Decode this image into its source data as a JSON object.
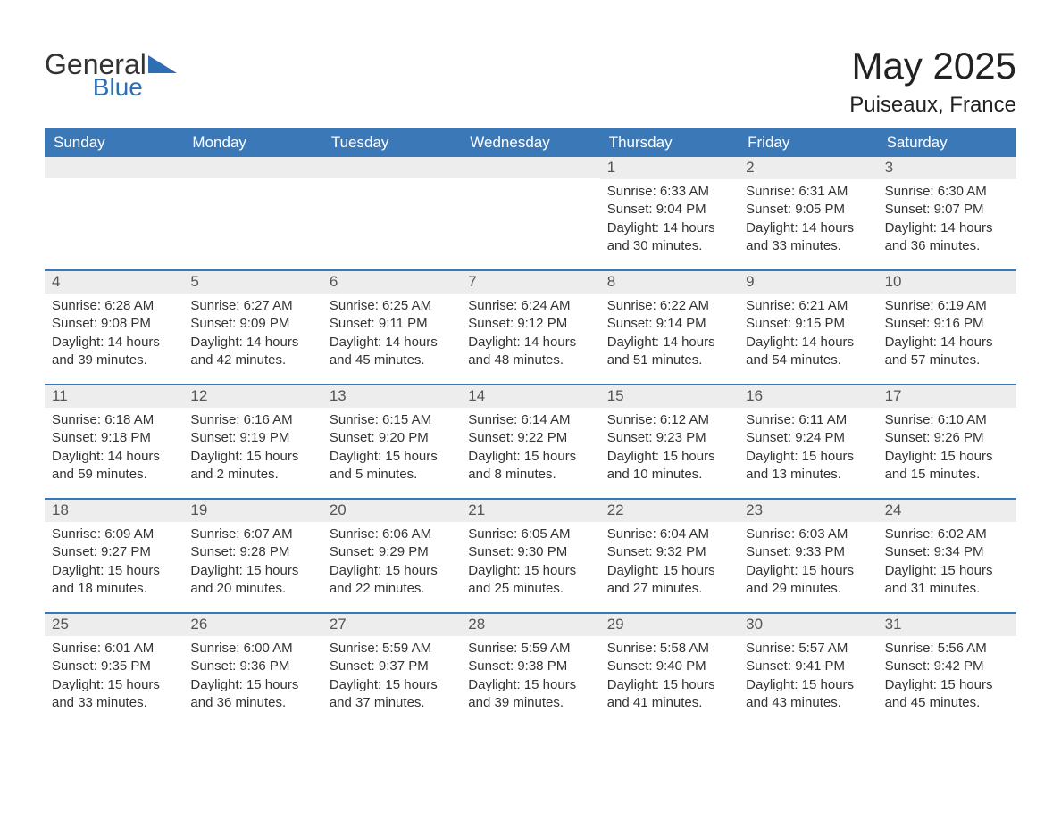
{
  "logo": {
    "general": "General",
    "blue": "Blue"
  },
  "title": "May 2025",
  "location": "Puiseaux, France",
  "colors": {
    "header_bg": "#3b78b8",
    "header_text": "#ffffff",
    "daynum_bg": "#ededed",
    "daynum_text": "#555555",
    "body_text": "#333333",
    "week_border": "#3b78b8",
    "page_bg": "#ffffff",
    "logo_blue": "#2f6eb5"
  },
  "days_of_week": [
    "Sunday",
    "Monday",
    "Tuesday",
    "Wednesday",
    "Thursday",
    "Friday",
    "Saturday"
  ],
  "calendar": {
    "type": "table",
    "columns": 7,
    "leading_blanks": 4,
    "days": [
      {
        "n": 1,
        "sunrise": "6:33 AM",
        "sunset": "9:04 PM",
        "daylight": "14 hours and 30 minutes."
      },
      {
        "n": 2,
        "sunrise": "6:31 AM",
        "sunset": "9:05 PM",
        "daylight": "14 hours and 33 minutes."
      },
      {
        "n": 3,
        "sunrise": "6:30 AM",
        "sunset": "9:07 PM",
        "daylight": "14 hours and 36 minutes."
      },
      {
        "n": 4,
        "sunrise": "6:28 AM",
        "sunset": "9:08 PM",
        "daylight": "14 hours and 39 minutes."
      },
      {
        "n": 5,
        "sunrise": "6:27 AM",
        "sunset": "9:09 PM",
        "daylight": "14 hours and 42 minutes."
      },
      {
        "n": 6,
        "sunrise": "6:25 AM",
        "sunset": "9:11 PM",
        "daylight": "14 hours and 45 minutes."
      },
      {
        "n": 7,
        "sunrise": "6:24 AM",
        "sunset": "9:12 PM",
        "daylight": "14 hours and 48 minutes."
      },
      {
        "n": 8,
        "sunrise": "6:22 AM",
        "sunset": "9:14 PM",
        "daylight": "14 hours and 51 minutes."
      },
      {
        "n": 9,
        "sunrise": "6:21 AM",
        "sunset": "9:15 PM",
        "daylight": "14 hours and 54 minutes."
      },
      {
        "n": 10,
        "sunrise": "6:19 AM",
        "sunset": "9:16 PM",
        "daylight": "14 hours and 57 minutes."
      },
      {
        "n": 11,
        "sunrise": "6:18 AM",
        "sunset": "9:18 PM",
        "daylight": "14 hours and 59 minutes."
      },
      {
        "n": 12,
        "sunrise": "6:16 AM",
        "sunset": "9:19 PM",
        "daylight": "15 hours and 2 minutes."
      },
      {
        "n": 13,
        "sunrise": "6:15 AM",
        "sunset": "9:20 PM",
        "daylight": "15 hours and 5 minutes."
      },
      {
        "n": 14,
        "sunrise": "6:14 AM",
        "sunset": "9:22 PM",
        "daylight": "15 hours and 8 minutes."
      },
      {
        "n": 15,
        "sunrise": "6:12 AM",
        "sunset": "9:23 PM",
        "daylight": "15 hours and 10 minutes."
      },
      {
        "n": 16,
        "sunrise": "6:11 AM",
        "sunset": "9:24 PM",
        "daylight": "15 hours and 13 minutes."
      },
      {
        "n": 17,
        "sunrise": "6:10 AM",
        "sunset": "9:26 PM",
        "daylight": "15 hours and 15 minutes."
      },
      {
        "n": 18,
        "sunrise": "6:09 AM",
        "sunset": "9:27 PM",
        "daylight": "15 hours and 18 minutes."
      },
      {
        "n": 19,
        "sunrise": "6:07 AM",
        "sunset": "9:28 PM",
        "daylight": "15 hours and 20 minutes."
      },
      {
        "n": 20,
        "sunrise": "6:06 AM",
        "sunset": "9:29 PM",
        "daylight": "15 hours and 22 minutes."
      },
      {
        "n": 21,
        "sunrise": "6:05 AM",
        "sunset": "9:30 PM",
        "daylight": "15 hours and 25 minutes."
      },
      {
        "n": 22,
        "sunrise": "6:04 AM",
        "sunset": "9:32 PM",
        "daylight": "15 hours and 27 minutes."
      },
      {
        "n": 23,
        "sunrise": "6:03 AM",
        "sunset": "9:33 PM",
        "daylight": "15 hours and 29 minutes."
      },
      {
        "n": 24,
        "sunrise": "6:02 AM",
        "sunset": "9:34 PM",
        "daylight": "15 hours and 31 minutes."
      },
      {
        "n": 25,
        "sunrise": "6:01 AM",
        "sunset": "9:35 PM",
        "daylight": "15 hours and 33 minutes."
      },
      {
        "n": 26,
        "sunrise": "6:00 AM",
        "sunset": "9:36 PM",
        "daylight": "15 hours and 36 minutes."
      },
      {
        "n": 27,
        "sunrise": "5:59 AM",
        "sunset": "9:37 PM",
        "daylight": "15 hours and 37 minutes."
      },
      {
        "n": 28,
        "sunrise": "5:59 AM",
        "sunset": "9:38 PM",
        "daylight": "15 hours and 39 minutes."
      },
      {
        "n": 29,
        "sunrise": "5:58 AM",
        "sunset": "9:40 PM",
        "daylight": "15 hours and 41 minutes."
      },
      {
        "n": 30,
        "sunrise": "5:57 AM",
        "sunset": "9:41 PM",
        "daylight": "15 hours and 43 minutes."
      },
      {
        "n": 31,
        "sunrise": "5:56 AM",
        "sunset": "9:42 PM",
        "daylight": "15 hours and 45 minutes."
      }
    ]
  },
  "labels": {
    "sunrise_prefix": "Sunrise: ",
    "sunset_prefix": "Sunset: ",
    "daylight_prefix": "Daylight: "
  }
}
